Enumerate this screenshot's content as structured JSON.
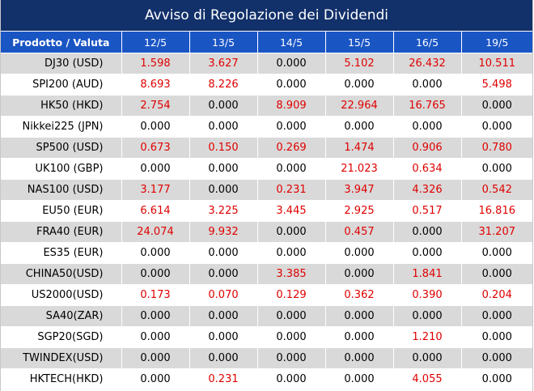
{
  "title": "Avviso di Regolazione dei Dividendi",
  "table": {
    "product_header": "Prodotto / Valuta",
    "dates": [
      "12/5",
      "13/5",
      "14/5",
      "15/5",
      "16/5",
      "19/5"
    ],
    "highlight_color": "#e00000",
    "rows": [
      {
        "product": "DJ30 (USD)",
        "values": [
          "1.598",
          "3.627",
          "0.000",
          "5.102",
          "26.432",
          "10.511"
        ]
      },
      {
        "product": "SPI200 (AUD)",
        "values": [
          "8.693",
          "8.226",
          "0.000",
          "0.000",
          "0.000",
          "5.498"
        ]
      },
      {
        "product": "HK50 (HKD)",
        "values": [
          "2.754",
          "0.000",
          "8.909",
          "22.964",
          "16.765",
          "0.000"
        ]
      },
      {
        "product": "Nikkei225 (JPN)",
        "values": [
          "0.000",
          "0.000",
          "0.000",
          "0.000",
          "0.000",
          "0.000"
        ]
      },
      {
        "product": "SP500 (USD)",
        "values": [
          "0.673",
          "0.150",
          "0.269",
          "1.474",
          "0.906",
          "0.780"
        ]
      },
      {
        "product": "UK100 (GBP)",
        "values": [
          "0.000",
          "0.000",
          "0.000",
          "21.023",
          "0.634",
          "0.000"
        ]
      },
      {
        "product": "NAS100 (USD)",
        "values": [
          "3.177",
          "0.000",
          "0.231",
          "3.947",
          "4.326",
          "0.542"
        ]
      },
      {
        "product": "EU50 (EUR)",
        "values": [
          "6.614",
          "3.225",
          "3.445",
          "2.925",
          "0.517",
          "16.816"
        ]
      },
      {
        "product": "FRA40 (EUR)",
        "values": [
          "24.074",
          "9.932",
          "0.000",
          "0.457",
          "0.000",
          "31.207"
        ]
      },
      {
        "product": "ES35 (EUR)",
        "values": [
          "0.000",
          "0.000",
          "0.000",
          "0.000",
          "0.000",
          "0.000"
        ]
      },
      {
        "product": "CHINA50(USD)",
        "values": [
          "0.000",
          "0.000",
          "3.385",
          "0.000",
          "1.841",
          "0.000"
        ]
      },
      {
        "product": "US2000(USD)",
        "values": [
          "0.173",
          "0.070",
          "0.129",
          "0.362",
          "0.390",
          "0.204"
        ]
      },
      {
        "product": "SA40(ZAR)",
        "values": [
          "0.000",
          "0.000",
          "0.000",
          "0.000",
          "0.000",
          "0.000"
        ]
      },
      {
        "product": "SGP20(SGD)",
        "values": [
          "0.000",
          "0.000",
          "0.000",
          "0.000",
          "1.210",
          "0.000"
        ]
      },
      {
        "product": "TWINDEX(USD)",
        "values": [
          "0.000",
          "0.000",
          "0.000",
          "0.000",
          "0.000",
          "0.000"
        ]
      },
      {
        "product": "HKTECH(HKD)",
        "values": [
          "0.000",
          "0.231",
          "0.000",
          "0.000",
          "4.055",
          "0.000"
        ]
      }
    ]
  }
}
